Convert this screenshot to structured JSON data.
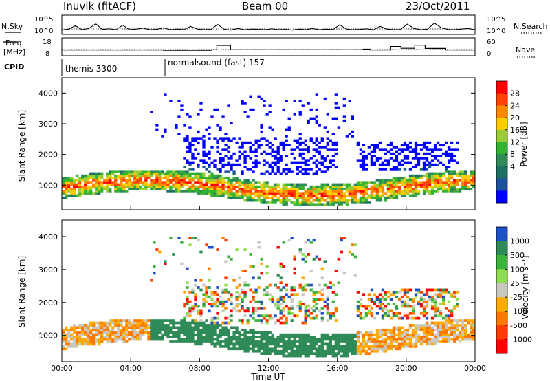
{
  "header": {
    "title": "Inuvik (fitACF)",
    "beam": "Beam 00",
    "date": "23/Oct/2011"
  },
  "left_labels": {
    "nsky": "N.Sky",
    "freq_line1": "Freq.",
    "freq_line2": "[MHz]",
    "cpid": "CPID"
  },
  "right_labels": {
    "nsearch": "N.Search",
    "nave": "Nave"
  },
  "noise_axes": {
    "left_ticks": [
      "10^5",
      "10^0"
    ],
    "right_ticks": [
      "10^5",
      "10^0"
    ]
  },
  "freq_axes": {
    "left_ticks": [
      "18",
      "8"
    ],
    "right_ticks": [
      "60",
      "0"
    ]
  },
  "cpid_labels": [
    {
      "text": "themis 3300",
      "start_hour": 0.0
    },
    {
      "text": "normalsound (fast) 157",
      "start_hour": 5.85
    }
  ],
  "power_colorbar": {
    "label": "Power [dB]",
    "ticks": [
      "28",
      "24",
      "20",
      "16",
      "12",
      "8",
      "4"
    ],
    "colors": [
      "#ff0000",
      "#ff4400",
      "#ff8800",
      "#ffcc00",
      "#9acd32",
      "#32b432",
      "#2e8b57",
      "#1e6e64",
      "#1e50a0",
      "#0000ff"
    ]
  },
  "velocity_colorbar": {
    "label": "Velocity [m s⁻¹]",
    "ticks": [
      "1000",
      "500",
      "100",
      "25",
      "-25",
      "-100",
      "-500",
      "-1000"
    ],
    "colors": [
      "#1e50c8",
      "#2e8b57",
      "#3cb43c",
      "#90dc50",
      "#c8c8c0",
      "#ffaa00",
      "#ff7800",
      "#ff3c00",
      "#ff0000"
    ]
  },
  "time_axis": {
    "label": "Time UT",
    "ticks": [
      "00:00",
      "04:00",
      "08:00",
      "12:00",
      "16:00",
      "20:00",
      "00:00"
    ]
  },
  "chart_data": [
    {
      "type": "line",
      "name": "noise",
      "x_range": [
        0,
        24
      ],
      "ylim_log": [
        0,
        5
      ],
      "y": [
        0.9,
        1.2,
        2.2,
        1.0,
        1.4,
        2.8,
        1.1,
        1.3,
        1.0,
        2.4,
        1.0,
        1.2,
        1.5,
        1.0,
        1.1,
        1.6,
        1.0,
        1.2,
        1.0,
        2.0,
        1.2,
        1.0,
        1.1,
        2.6,
        1.1,
        0.9,
        1.4,
        1.0,
        1.2,
        1.1,
        1.0,
        1.3,
        1.0,
        1.1,
        0.9,
        1.2,
        1.0,
        1.4,
        1.0,
        1.2,
        1.0,
        2.5,
        1.2,
        1.0,
        1.1,
        1.3,
        1.0,
        2.0,
        1.2,
        1.0,
        1.1,
        2.7,
        1.4,
        1.0,
        1.2,
        3.0,
        1.6,
        1.1,
        1.0,
        1.2,
        1.4,
        1.0
      ]
    },
    {
      "type": "line",
      "name": "frequency",
      "x_range": [
        0,
        24
      ],
      "ylim": [
        8,
        18
      ],
      "points": [
        [
          0.0,
          10.9
        ],
        [
          5.9,
          10.9
        ],
        [
          5.9,
          10.7
        ],
        [
          8.7,
          10.7
        ],
        [
          8.7,
          11.0
        ],
        [
          9.0,
          11.0
        ],
        [
          9.0,
          13.9
        ],
        [
          9.8,
          13.9
        ],
        [
          9.8,
          11.0
        ],
        [
          17.5,
          11.0
        ],
        [
          17.5,
          11.4
        ],
        [
          17.9,
          11.4
        ],
        [
          17.9,
          10.9
        ],
        [
          19.1,
          10.9
        ],
        [
          19.1,
          13.2
        ],
        [
          19.7,
          13.2
        ],
        [
          19.7,
          12.0
        ],
        [
          20.5,
          12.0
        ],
        [
          20.5,
          14.1
        ],
        [
          21.1,
          14.1
        ],
        [
          21.1,
          11.9
        ],
        [
          22.3,
          11.9
        ],
        [
          22.3,
          10.9
        ],
        [
          24.0,
          10.9
        ]
      ]
    },
    {
      "type": "heatmap",
      "name": "power",
      "x_range": [
        0,
        24
      ],
      "ylim": [
        200,
        4500
      ],
      "ylabel": "Slant Range [km]",
      "colorbar_range": [
        0,
        30
      ]
    },
    {
      "type": "heatmap",
      "name": "velocity",
      "x_range": [
        0,
        24
      ],
      "ylim": [
        200,
        4500
      ],
      "ylabel": "Slant Range [km]",
      "colorbar_range": [
        -1000,
        1000
      ]
    }
  ]
}
